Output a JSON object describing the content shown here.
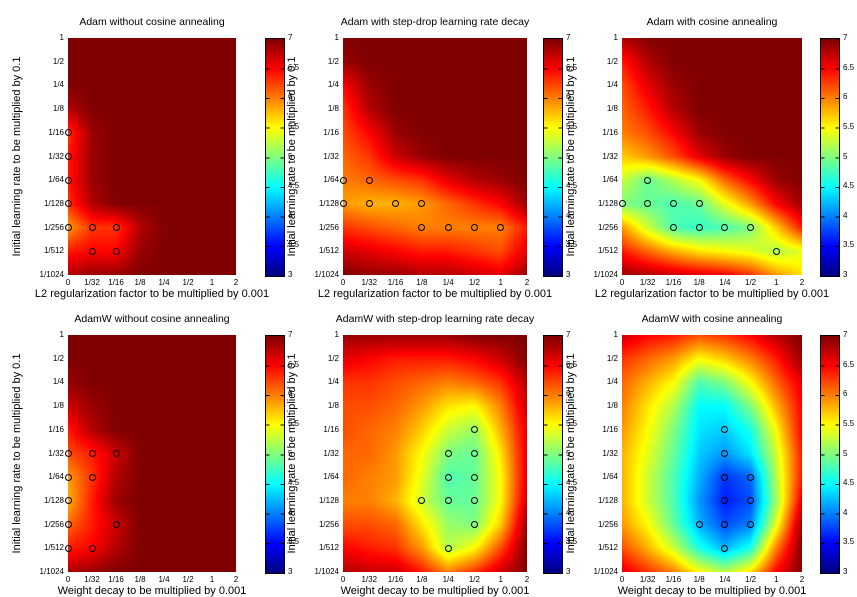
{
  "figure": {
    "background_color": "#ffffff",
    "text_color": "#000000",
    "marker_style": "open black circles at evaluated best points",
    "colormap_name": "jet"
  },
  "chart_data": [
    {
      "type": "heatmap",
      "grid_row": 0,
      "grid_col": 0,
      "title": "Adam without cosine annealing",
      "xlabel": "L2 regularization factor to be multiplied by 0.001",
      "ylabel": "Initial learning rate to be multiplied by 0.1",
      "x_tick_labels": [
        "0",
        "1/32",
        "1/16",
        "1/8",
        "1/4",
        "1/2",
        "1",
        "2"
      ],
      "y_tick_labels": [
        "1",
        "1/2",
        "1/4",
        "1/8",
        "1/16",
        "1/32",
        "1/64",
        "1/128",
        "1/256",
        "1/512",
        "1/1024"
      ],
      "colormap": "jet",
      "value_range": [
        3,
        7
      ],
      "colorbar_tick_labels": [
        "7",
        "6.5",
        "6",
        "5.5",
        "5",
        "4.5",
        "4",
        "3.5",
        "3"
      ],
      "values_rows_top_to_bottom": [
        [
          7,
          7,
          7,
          7,
          7,
          7,
          7,
          7
        ],
        [
          7,
          7,
          7,
          7,
          7,
          7,
          7,
          7
        ],
        [
          7,
          7,
          7,
          7,
          7,
          7,
          7,
          7
        ],
        [
          6.8,
          7,
          7,
          7,
          7,
          7,
          7,
          7
        ],
        [
          6.3,
          6.9,
          7,
          7,
          7,
          7,
          7,
          7
        ],
        [
          6.4,
          6.9,
          7,
          7,
          7,
          7,
          7,
          7
        ],
        [
          6.4,
          6.9,
          7,
          7,
          7,
          7,
          7,
          7
        ],
        [
          6.3,
          6.8,
          7,
          7,
          7,
          7,
          7,
          7
        ],
        [
          5.9,
          6.3,
          6.3,
          6.8,
          7,
          7,
          7,
          7
        ],
        [
          6.4,
          6.5,
          6.5,
          6.9,
          7,
          7,
          7,
          7
        ],
        [
          6.8,
          6.9,
          6.9,
          7,
          7,
          7,
          7,
          7
        ]
      ],
      "marker_format": "[x_index, y_index]",
      "markers": [
        [
          0,
          4
        ],
        [
          0,
          5
        ],
        [
          0,
          6
        ],
        [
          0,
          7
        ],
        [
          0,
          8
        ],
        [
          1,
          8
        ],
        [
          2,
          8
        ],
        [
          1,
          9
        ],
        [
          2,
          9
        ]
      ]
    },
    {
      "type": "heatmap",
      "grid_row": 0,
      "grid_col": 1,
      "title": "Adam with step-drop learning rate decay",
      "xlabel": "L2 regularization factor to be multiplied by 0.001",
      "ylabel": "Initial learning rate to be multiplied by 0.1",
      "x_tick_labels": [
        "0",
        "1/32",
        "1/16",
        "1/8",
        "1/4",
        "1/2",
        "1",
        "2"
      ],
      "y_tick_labels": [
        "1",
        "1/2",
        "1/4",
        "1/8",
        "1/16",
        "1/32",
        "1/64",
        "1/128",
        "1/256",
        "1/512",
        "1/1024"
      ],
      "colormap": "jet",
      "value_range": [
        3,
        7
      ],
      "colorbar_tick_labels": [
        "7",
        "6.5",
        "6",
        "5.5",
        "5",
        "4.5",
        "4",
        "3.5",
        "3"
      ],
      "values_rows_top_to_bottom": [
        [
          7,
          7,
          7,
          7,
          7,
          7,
          7,
          7
        ],
        [
          6.9,
          7,
          7,
          7,
          7,
          7,
          7,
          7
        ],
        [
          6.5,
          6.9,
          7,
          7,
          7,
          7,
          7,
          7
        ],
        [
          6.3,
          6.8,
          7,
          7,
          7,
          7,
          7,
          7
        ],
        [
          6.2,
          6.5,
          6.9,
          7,
          7,
          7,
          7,
          7
        ],
        [
          6.1,
          6.3,
          6.7,
          6.9,
          7,
          7,
          7,
          7
        ],
        [
          6.0,
          6.1,
          6.2,
          6.3,
          6.6,
          6.8,
          6.9,
          7
        ],
        [
          5.9,
          5.8,
          5.8,
          5.9,
          6.1,
          6.3,
          6.5,
          6.9
        ],
        [
          6.3,
          6.2,
          6.1,
          6.0,
          6.0,
          6.0,
          6.0,
          6.4
        ],
        [
          6.7,
          6.6,
          6.5,
          6.4,
          6.4,
          6.3,
          6.2,
          6.6
        ],
        [
          7,
          6.9,
          6.9,
          6.8,
          6.8,
          6.7,
          6.6,
          6.9
        ]
      ],
      "marker_format": "[x_index, y_index]",
      "markers": [
        [
          0,
          6
        ],
        [
          1,
          6
        ],
        [
          0,
          7
        ],
        [
          1,
          7
        ],
        [
          2,
          7
        ],
        [
          3,
          7
        ],
        [
          3,
          8
        ],
        [
          4,
          8
        ],
        [
          5,
          8
        ],
        [
          6,
          8
        ]
      ]
    },
    {
      "type": "heatmap",
      "grid_row": 0,
      "grid_col": 2,
      "title": "Adam with cosine annealing",
      "xlabel": "L2 regularization factor to be multiplied by 0.001",
      "ylabel": "Initial learning rate to be multiplied by 0.1",
      "x_tick_labels": [
        "0",
        "1/32",
        "1/16",
        "1/8",
        "1/4",
        "1/2",
        "1",
        "2"
      ],
      "y_tick_labels": [
        "1",
        "1/2",
        "1/4",
        "1/8",
        "1/16",
        "1/32",
        "1/64",
        "1/128",
        "1/256",
        "1/512",
        "1/1024"
      ],
      "colormap": "jet",
      "value_range": [
        3,
        7
      ],
      "colorbar_tick_labels": [
        "7",
        "6.5",
        "6",
        "5.5",
        "5",
        "4.5",
        "4",
        "3.5",
        "3"
      ],
      "values_rows_top_to_bottom": [
        [
          6.8,
          7,
          7,
          7,
          7,
          7,
          7,
          7
        ],
        [
          6.4,
          6.8,
          7,
          7,
          7,
          7,
          7,
          7
        ],
        [
          6.2,
          6.6,
          6.9,
          7,
          7,
          7,
          7,
          7
        ],
        [
          6.1,
          6.4,
          6.8,
          7,
          7,
          7,
          7,
          7
        ],
        [
          6.0,
          6.2,
          6.5,
          6.9,
          7,
          7,
          7,
          7
        ],
        [
          5.7,
          5.9,
          6.2,
          6.6,
          6.9,
          7,
          7,
          7
        ],
        [
          5.3,
          4.9,
          5.2,
          5.5,
          6.1,
          6.5,
          6.9,
          7
        ],
        [
          5.0,
          4.9,
          4.8,
          4.9,
          5.4,
          5.9,
          6.5,
          6.9
        ],
        [
          5.9,
          5.3,
          4.8,
          4.7,
          4.8,
          5.0,
          5.7,
          6.4
        ],
        [
          6.4,
          6.1,
          5.8,
          5.6,
          5.5,
          5.4,
          5.2,
          5.4
        ],
        [
          6.9,
          6.8,
          6.7,
          6.6,
          6.5,
          6.3,
          5.9,
          5.6
        ]
      ],
      "marker_format": "[x_index, y_index]",
      "markers": [
        [
          1,
          6
        ],
        [
          0,
          7
        ],
        [
          1,
          7
        ],
        [
          2,
          7
        ],
        [
          3,
          7
        ],
        [
          2,
          8
        ],
        [
          3,
          8
        ],
        [
          4,
          8
        ],
        [
          5,
          8
        ],
        [
          6,
          9
        ]
      ]
    },
    {
      "type": "heatmap",
      "grid_row": 1,
      "grid_col": 0,
      "title": "AdamW without cosine annealing",
      "xlabel": "Weight decay to be multiplied by 0.001",
      "ylabel": "Initial learning rate to be multiplied by 0.1",
      "x_tick_labels": [
        "0",
        "1/32",
        "1/16",
        "1/8",
        "1/4",
        "1/2",
        "1",
        "2"
      ],
      "y_tick_labels": [
        "1",
        "1/2",
        "1/4",
        "1/8",
        "1/16",
        "1/32",
        "1/64",
        "1/128",
        "1/256",
        "1/512",
        "1/1024"
      ],
      "colormap": "jet",
      "value_range": [
        3,
        7
      ],
      "colorbar_tick_labels": [
        "7",
        "6.5",
        "6",
        "5.5",
        "5",
        "4.5",
        "4",
        "3.5",
        "3"
      ],
      "values_rows_top_to_bottom": [
        [
          7,
          7,
          7,
          7,
          7,
          7,
          7,
          7
        ],
        [
          7,
          7,
          7,
          7,
          7,
          7,
          7,
          7
        ],
        [
          6.9,
          7,
          7,
          7,
          7,
          7,
          7,
          7
        ],
        [
          6.7,
          6.9,
          7,
          7,
          7,
          7,
          7,
          7
        ],
        [
          6.4,
          6.8,
          7,
          7,
          7,
          7,
          7,
          7
        ],
        [
          6.2,
          6.4,
          6.7,
          7,
          7,
          7,
          7,
          7
        ],
        [
          5.9,
          6.3,
          6.8,
          7,
          7,
          7,
          7,
          7
        ],
        [
          5.8,
          6.4,
          6.9,
          7,
          7,
          7,
          7,
          7
        ],
        [
          6.1,
          6.4,
          6.7,
          7,
          7,
          7,
          7,
          7
        ],
        [
          6.4,
          6.5,
          6.8,
          7,
          7,
          7,
          7,
          7
        ],
        [
          6.8,
          6.9,
          7,
          7,
          7,
          7,
          7,
          7
        ]
      ],
      "marker_format": "[x_index, y_index]",
      "markers": [
        [
          0,
          5
        ],
        [
          1,
          5
        ],
        [
          2,
          5
        ],
        [
          0,
          6
        ],
        [
          1,
          6
        ],
        [
          0,
          7
        ],
        [
          0,
          8
        ],
        [
          2,
          8
        ],
        [
          0,
          9
        ],
        [
          1,
          9
        ]
      ]
    },
    {
      "type": "heatmap",
      "grid_row": 1,
      "grid_col": 1,
      "title": "AdamW with step-drop learning rate decay",
      "xlabel": "Weight decay to be multiplied by 0.001",
      "ylabel": "Initial learning rate to be multiplied by 0.1",
      "x_tick_labels": [
        "0",
        "1/32",
        "1/16",
        "1/8",
        "1/4",
        "1/2",
        "1",
        "2"
      ],
      "y_tick_labels": [
        "1",
        "1/2",
        "1/4",
        "1/8",
        "1/16",
        "1/32",
        "1/64",
        "1/128",
        "1/256",
        "1/512",
        "1/1024"
      ],
      "colormap": "jet",
      "value_range": [
        3,
        7
      ],
      "colorbar_tick_labels": [
        "7",
        "6.5",
        "6",
        "5.5",
        "5",
        "4.5",
        "4",
        "3.5",
        "3"
      ],
      "values_rows_top_to_bottom": [
        [
          6.9,
          6.9,
          6.9,
          6.9,
          6.9,
          7,
          7,
          7
        ],
        [
          6.6,
          6.5,
          6.4,
          6.4,
          6.4,
          6.5,
          6.7,
          7
        ],
        [
          6.3,
          6.3,
          6.2,
          6.1,
          6.0,
          6.1,
          6.3,
          6.8
        ],
        [
          6.2,
          6.2,
          6.1,
          5.9,
          5.6,
          5.5,
          6.0,
          6.7
        ],
        [
          6.2,
          6.1,
          6.0,
          5.7,
          5.3,
          5.1,
          5.8,
          6.6
        ],
        [
          6.1,
          6.1,
          5.9,
          5.5,
          5.0,
          4.9,
          5.6,
          6.6
        ],
        [
          6.1,
          6.0,
          5.9,
          5.4,
          4.8,
          4.9,
          5.5,
          6.6
        ],
        [
          6.0,
          6.0,
          5.8,
          5.3,
          4.9,
          4.9,
          5.5,
          6.7
        ],
        [
          6.2,
          6.2,
          6.1,
          5.6,
          5.1,
          5.0,
          5.7,
          6.9
        ],
        [
          6.5,
          6.4,
          6.3,
          5.9,
          5.2,
          5.5,
          6.2,
          7
        ],
        [
          6.8,
          6.7,
          6.7,
          6.4,
          6.0,
          6.3,
          6.7,
          7
        ]
      ],
      "marker_format": "[x_index, y_index]",
      "markers": [
        [
          5,
          4
        ],
        [
          4,
          5
        ],
        [
          5,
          5
        ],
        [
          4,
          6
        ],
        [
          5,
          6
        ],
        [
          3,
          7
        ],
        [
          4,
          7
        ],
        [
          5,
          7
        ],
        [
          5,
          8
        ],
        [
          4,
          9
        ]
      ]
    },
    {
      "type": "heatmap",
      "grid_row": 1,
      "grid_col": 2,
      "title": "AdamW with cosine annealing",
      "xlabel": "Weight decay to be multiplied by 0.001",
      "ylabel": "Initial learning rate to be multiplied by 0.1",
      "x_tick_labels": [
        "0",
        "1/32",
        "1/16",
        "1/8",
        "1/4",
        "1/2",
        "1",
        "2"
      ],
      "y_tick_labels": [
        "1",
        "1/2",
        "1/4",
        "1/8",
        "1/16",
        "1/32",
        "1/64",
        "1/128",
        "1/256",
        "1/512",
        "1/1024"
      ],
      "colormap": "jet",
      "value_range": [
        3,
        7
      ],
      "colorbar_tick_labels": [
        "7",
        "6.5",
        "6",
        "5.5",
        "5",
        "4.5",
        "4",
        "3.5",
        "3"
      ],
      "values_rows_top_to_bottom": [
        [
          6.7,
          6.5,
          6.4,
          6.2,
          6.3,
          6.5,
          6.8,
          7
        ],
        [
          6.3,
          6.1,
          5.9,
          5.5,
          5.7,
          6.0,
          6.4,
          6.9
        ],
        [
          6.1,
          5.8,
          5.5,
          4.8,
          5.0,
          5.5,
          6.1,
          6.6
        ],
        [
          6.0,
          5.6,
          5.2,
          4.5,
          4.5,
          5.0,
          5.8,
          6.5
        ],
        [
          5.9,
          5.5,
          5.0,
          4.4,
          4.3,
          4.6,
          5.5,
          6.5
        ],
        [
          5.8,
          5.4,
          4.9,
          4.3,
          4.1,
          4.4,
          5.3,
          6.4
        ],
        [
          5.8,
          5.3,
          4.8,
          4.2,
          3.7,
          3.9,
          5.2,
          6.4
        ],
        [
          5.8,
          5.3,
          4.8,
          4.1,
          3.6,
          3.8,
          5.1,
          6.6
        ],
        [
          5.9,
          5.5,
          4.9,
          4.2,
          3.8,
          4.0,
          5.4,
          6.9
        ],
        [
          6.2,
          5.8,
          5.3,
          4.6,
          4.2,
          4.6,
          6.0,
          7
        ],
        [
          6.6,
          6.3,
          6.0,
          5.5,
          5.2,
          5.6,
          6.5,
          7
        ]
      ],
      "marker_format": "[x_index, y_index]",
      "markers": [
        [
          4,
          4
        ],
        [
          4,
          5
        ],
        [
          4,
          6
        ],
        [
          5,
          6
        ],
        [
          4,
          7
        ],
        [
          5,
          7
        ],
        [
          3,
          8
        ],
        [
          4,
          8
        ],
        [
          5,
          8
        ],
        [
          4,
          9
        ]
      ]
    }
  ]
}
